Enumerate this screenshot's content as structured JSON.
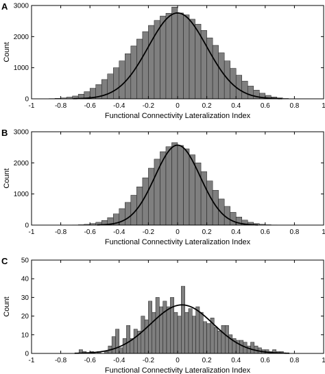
{
  "chart_data": [
    {
      "type": "bar",
      "panel_label": "A",
      "xlabel": "Functional Connectivity Lateralization Index",
      "ylabel": "Count",
      "xlim": [
        -1,
        1
      ],
      "ylim": [
        0,
        3000
      ],
      "xticks": [
        "-1",
        "-0.8",
        "-0.6",
        "-0.4",
        "-0.2",
        "0",
        "0.2",
        "0.4",
        "0.6",
        "0.8",
        "1"
      ],
      "yticks": [
        "0",
        "1000",
        "2000",
        "3000"
      ],
      "bin_width": 0.04,
      "bin_centers": [
        -0.94,
        -0.9,
        -0.86,
        -0.82,
        -0.78,
        -0.74,
        -0.7,
        -0.66,
        -0.62,
        -0.58,
        -0.54,
        -0.5,
        -0.46,
        -0.42,
        -0.38,
        -0.34,
        -0.3,
        -0.26,
        -0.22,
        -0.18,
        -0.14,
        -0.1,
        -0.06,
        -0.02,
        0.02,
        0.06,
        0.1,
        0.14,
        0.18,
        0.22,
        0.26,
        0.3,
        0.34,
        0.38,
        0.42,
        0.46,
        0.5,
        0.54,
        0.58,
        0.62,
        0.66,
        0.7,
        0.74
      ],
      "counts": [
        3,
        5,
        8,
        15,
        30,
        55,
        90,
        150,
        230,
        340,
        460,
        620,
        800,
        1000,
        1220,
        1450,
        1700,
        1920,
        2160,
        2360,
        2520,
        2660,
        2750,
        2950,
        2760,
        2700,
        2560,
        2400,
        2200,
        1960,
        1720,
        1480,
        1220,
        980,
        760,
        570,
        410,
        280,
        180,
        110,
        60,
        30,
        12
      ],
      "fit": {
        "type": "normal",
        "peak": 2760,
        "mean": 0.0,
        "sd": 0.2
      }
    },
    {
      "type": "bar",
      "panel_label": "B",
      "xlabel": "Functional Connectivity Lateralization Index",
      "ylabel": "Count",
      "xlim": [
        -1,
        1
      ],
      "ylim": [
        0,
        3000
      ],
      "xticks": [
        "-1",
        "-0.8",
        "-0.6",
        "-0.4",
        "-0.2",
        "0",
        "0.2",
        "0.4",
        "0.6",
        "0.8",
        "1"
      ],
      "yticks": [
        "0",
        "1000",
        "2000",
        "3000"
      ],
      "bin_width": 0.04,
      "bin_centers": [
        -0.74,
        -0.7,
        -0.66,
        -0.62,
        -0.58,
        -0.54,
        -0.5,
        -0.46,
        -0.42,
        -0.38,
        -0.34,
        -0.3,
        -0.26,
        -0.22,
        -0.18,
        -0.14,
        -0.1,
        -0.06,
        -0.02,
        0.02,
        0.06,
        0.1,
        0.14,
        0.18,
        0.22,
        0.26,
        0.3,
        0.34,
        0.38,
        0.42,
        0.46,
        0.5,
        0.54,
        0.58,
        0.62,
        0.66,
        0.7
      ],
      "counts": [
        3,
        6,
        12,
        25,
        50,
        90,
        150,
        240,
        360,
        530,
        730,
        960,
        1230,
        1520,
        1830,
        2120,
        2360,
        2520,
        2650,
        2560,
        2450,
        2260,
        2000,
        1720,
        1420,
        1120,
        840,
        600,
        410,
        260,
        160,
        90,
        50,
        25,
        12,
        6,
        3
      ],
      "fit": {
        "type": "normal",
        "peak": 2570,
        "mean": 0.0,
        "sd": 0.155
      }
    },
    {
      "type": "bar",
      "panel_label": "C",
      "xlabel": "Functional Connectivity Lateralization Index",
      "ylabel": "Count",
      "xlim": [
        -1,
        1
      ],
      "ylim": [
        0,
        50
      ],
      "xticks": [
        "-1",
        "-0.8",
        "-0.6",
        "-0.4",
        "-0.2",
        "0",
        "0.2",
        "0.4",
        "0.6",
        "0.8",
        "1"
      ],
      "yticks": [
        "0",
        "10",
        "20",
        "30",
        "40",
        "50"
      ],
      "bin_width": 0.025,
      "bin_centers": [
        -0.6875,
        -0.6625,
        -0.6375,
        -0.6125,
        -0.5875,
        -0.5625,
        -0.5375,
        -0.5125,
        -0.4875,
        -0.4625,
        -0.4375,
        -0.4125,
        -0.3875,
        -0.3625,
        -0.3375,
        -0.3125,
        -0.2875,
        -0.2625,
        -0.2375,
        -0.2125,
        -0.1875,
        -0.1625,
        -0.1375,
        -0.1125,
        -0.0875,
        -0.0625,
        -0.0375,
        -0.0125,
        0.0125,
        0.0375,
        0.0625,
        0.0875,
        0.1125,
        0.1375,
        0.1625,
        0.1875,
        0.2125,
        0.2375,
        0.2625,
        0.2875,
        0.3125,
        0.3375,
        0.3625,
        0.3875,
        0.4125,
        0.4375,
        0.4625,
        0.4875,
        0.5125,
        0.5375,
        0.5625,
        0.5875,
        0.6125,
        0.6375,
        0.6625,
        0.6875,
        0.7125,
        0.7375
      ],
      "counts": [
        0,
        2,
        1,
        0,
        1,
        0,
        1,
        0,
        1,
        4,
        9,
        13,
        3,
        8,
        15,
        8,
        13,
        12,
        20,
        18,
        28,
        22,
        30,
        25,
        28,
        25,
        30,
        22,
        20,
        36,
        22,
        24,
        20,
        25,
        22,
        17,
        16,
        19,
        14,
        12,
        15,
        15,
        10,
        8,
        7,
        7,
        6,
        4,
        6,
        4,
        3,
        2,
        2,
        1,
        2,
        1,
        1,
        0
      ],
      "fit": {
        "type": "normal",
        "peak": 26,
        "mean": 0.03,
        "sd": 0.215
      }
    }
  ]
}
